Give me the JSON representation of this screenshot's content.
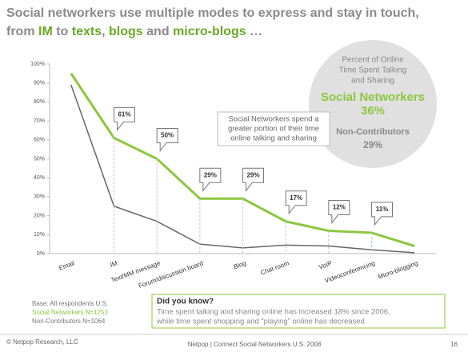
{
  "slide": {
    "title_line1": "Social networkers use multiple modes to express and stay in touch,",
    "title_line2": [
      {
        "text": "from ",
        "em": false
      },
      {
        "text": "IM",
        "em": true
      },
      {
        "text": " to ",
        "em": false
      },
      {
        "text": "texts",
        "em": true
      },
      {
        "text": ", ",
        "em": false
      },
      {
        "text": "blogs",
        "em": true
      },
      {
        "text": " and ",
        "em": false
      },
      {
        "text": "micro-blogs",
        "em": true
      },
      {
        "text": " …",
        "em": false
      }
    ],
    "circle": {
      "caption": [
        "Percent of Online",
        "Time Spent Talking",
        "and Sharing"
      ],
      "primary_name": "Social Networkers",
      "primary_value": "36%",
      "secondary_name": "Non-Contributors",
      "secondary_value": "29%"
    },
    "callout": [
      "Social Networkers spend  a",
      "greater portion of their time",
      "online talking and sharing"
    ],
    "base": [
      "Base: All respondents U.S.",
      "Social Networkers N=1253",
      "Non-Contributors N=1064"
    ],
    "did_you_know": {
      "heading": "Did you know?",
      "body": [
        "Time spent talking and sharing online has increased 18% since 2006,",
        "while time spent shopping and “playing” online has decreased"
      ]
    },
    "footer": {
      "left": "© Netpop Research, LLC",
      "center": "Netpop | Connect  Social Networkers U.S. 2008",
      "page": "16"
    }
  },
  "chart_data": {
    "type": "line",
    "categories": [
      "Email",
      "IM",
      "Text/MM message",
      "Forum/discussion board",
      "Blog",
      "Chat room",
      "VoIP",
      "Videoconferencing",
      "Micro-blogging"
    ],
    "series": [
      {
        "name": "Social Networkers",
        "color": "#8cc63f",
        "values": [
          95,
          61,
          50,
          29,
          29,
          17,
          12,
          11,
          4
        ],
        "value_labels": [
          null,
          "61%",
          "50%",
          "29%",
          "29%",
          "17%",
          "12%",
          "11%",
          null
        ]
      },
      {
        "name": "Non-Contributors",
        "color": "#666666",
        "values": [
          89,
          25,
          17,
          5,
          3,
          4.5,
          4,
          2,
          0.5
        ]
      }
    ],
    "ylim": [
      0,
      100
    ],
    "yticks": [
      {
        "value": 0,
        "label": "0%"
      },
      {
        "value": 10,
        "label": "10%"
      },
      {
        "value": 20,
        "label": "20%"
      },
      {
        "value": 30,
        "label": "30%"
      },
      {
        "value": 40,
        "label": "40%"
      },
      {
        "value": 50,
        "label": "50%"
      },
      {
        "value": 60,
        "label": "60%"
      },
      {
        "value": 70,
        "label": "70%"
      },
      {
        "value": 80,
        "label": "80%"
      },
      {
        "value": 90,
        "label": "90%"
      },
      {
        "value": 100,
        "label": "100%"
      }
    ]
  }
}
